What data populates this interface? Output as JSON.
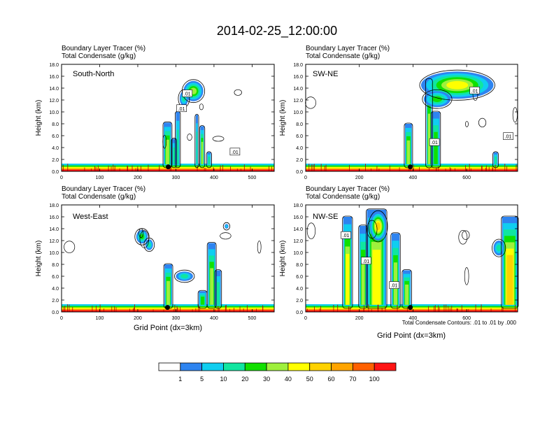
{
  "title": "2014-02-25_12:00:00",
  "caption_line1": "Boundary Layer Tracer   (%)",
  "caption_line2": "Total Condensate   (g/kg)",
  "ylabel": "Height (km)",
  "xlabel": "Grid Point (dx=3km)",
  "contour_note": "Total Condensate Contours: .01 to .01 by .000",
  "contour_label": ".01",
  "y_ticks": [
    "0.0",
    "2.0",
    "4.0",
    "6.0",
    "8.0",
    "10.0",
    "12.0",
    "14.0",
    "16.0",
    "18.0"
  ],
  "colorbar": {
    "levels": [
      "1",
      "5",
      "10",
      "20",
      "30",
      "40",
      "50",
      "60",
      "70",
      "100"
    ],
    "colors": [
      "#ffffff",
      "#2e84f0",
      "#10cef0",
      "#10e6a0",
      "#10e000",
      "#9ef03c",
      "#ffff00",
      "#ffd200",
      "#ffa400",
      "#ff6000",
      "#ff1414"
    ]
  },
  "chart_data": [
    {
      "type": "heatmap",
      "panel_label": "South-North",
      "xlim": [
        0,
        558
      ],
      "x_ticks": [
        0,
        100,
        200,
        300,
        400,
        500
      ],
      "ylim": [
        0,
        18
      ],
      "surface_marker_x": 280,
      "plumes": [
        {
          "x0": 268,
          "x1": 288,
          "ytop": 8.2,
          "cat": 5
        },
        {
          "x0": 290,
          "x1": 300,
          "ytop": 5.5,
          "cat": 3
        },
        {
          "x0": 300,
          "x1": 310,
          "ytop": 10.0,
          "cat": 3
        },
        {
          "x0": 352,
          "x1": 358,
          "ytop": 9.5,
          "cat": 3
        },
        {
          "x0": 364,
          "x1": 374,
          "ytop": 7.6,
          "cat": 5
        },
        {
          "x0": 382,
          "x1": 392,
          "ytop": 3.2,
          "cat": 3
        }
      ],
      "cloud_bands": [
        {
          "x0": 320,
          "x1": 372,
          "y0": 11.8,
          "y1": 15.2,
          "cat": 5
        },
        {
          "x0": 310,
          "x1": 332,
          "y0": 11.0,
          "y1": 13.5,
          "cat": 3
        }
      ]
    },
    {
      "type": "heatmap",
      "panel_label": "SW-NE",
      "xlim": [
        0,
        790
      ],
      "x_ticks": [
        0,
        200,
        400,
        600
      ],
      "ylim": [
        0,
        18
      ],
      "surface_marker_x": 390,
      "plumes": [
        {
          "x0": 370,
          "x1": 396,
          "ytop": 8.0,
          "cat": 5
        },
        {
          "x0": 450,
          "x1": 470,
          "ytop": 15.5,
          "cat": 5
        },
        {
          "x0": 470,
          "x1": 500,
          "ytop": 10.0,
          "cat": 4
        },
        {
          "x0": 700,
          "x1": 716,
          "ytop": 3.2,
          "cat": 3
        }
      ],
      "cloud_bands": [
        {
          "x0": 430,
          "x1": 700,
          "y0": 12.2,
          "y1": 16.8,
          "cat": 6
        },
        {
          "x0": 440,
          "x1": 540,
          "y0": 10.8,
          "y1": 13.5,
          "cat": 4
        }
      ]
    },
    {
      "type": "heatmap",
      "panel_label": "West-East",
      "xlim": [
        0,
        558
      ],
      "x_ticks": [
        0,
        100,
        200,
        300,
        400,
        500
      ],
      "ylim": [
        0,
        18
      ],
      "surface_marker_x": 278,
      "plumes": [
        {
          "x0": 270,
          "x1": 290,
          "ytop": 8.0,
          "cat": 5
        },
        {
          "x0": 360,
          "x1": 380,
          "ytop": 3.5,
          "cat": 4
        },
        {
          "x0": 384,
          "x1": 404,
          "ytop": 11.6,
          "cat": 5
        },
        {
          "x0": 404,
          "x1": 418,
          "ytop": 7.0,
          "cat": 3
        }
      ],
      "cloud_bands": [
        {
          "x0": 196,
          "x1": 226,
          "y0": 11.5,
          "y1": 13.8,
          "cat": 4
        },
        {
          "x0": 220,
          "x1": 240,
          "y0": 10.4,
          "y1": 12.2,
          "cat": 3
        },
        {
          "x0": 300,
          "x1": 345,
          "y0": 5.2,
          "y1": 6.8,
          "cat": 3
        },
        {
          "x0": 428,
          "x1": 438,
          "y0": 14.0,
          "y1": 14.8,
          "cat": 2
        }
      ]
    },
    {
      "type": "heatmap",
      "panel_label": "NW-SE",
      "xlim": [
        0,
        790
      ],
      "x_ticks": [
        0,
        200,
        400,
        600
      ],
      "ylim": [
        0,
        18
      ],
      "surface_marker_x": 390,
      "plumes": [
        {
          "x0": 140,
          "x1": 172,
          "ytop": 16.0,
          "cat": 6
        },
        {
          "x0": 200,
          "x1": 228,
          "ytop": 14.5,
          "cat": 5
        },
        {
          "x0": 228,
          "x1": 300,
          "ytop": 17.2,
          "cat": 6
        },
        {
          "x0": 320,
          "x1": 350,
          "ytop": 13.2,
          "cat": 5
        },
        {
          "x0": 362,
          "x1": 392,
          "ytop": 7.0,
          "cat": 5
        },
        {
          "x0": 732,
          "x1": 790,
          "ytop": 16.0,
          "cat": 7
        }
      ],
      "cloud_bands": [
        {
          "x0": 240,
          "x1": 300,
          "y0": 12.0,
          "y1": 16.8,
          "cat": 7
        },
        {
          "x0": 700,
          "x1": 740,
          "y0": 9.5,
          "y1": 12.0,
          "cat": 3
        }
      ]
    }
  ]
}
